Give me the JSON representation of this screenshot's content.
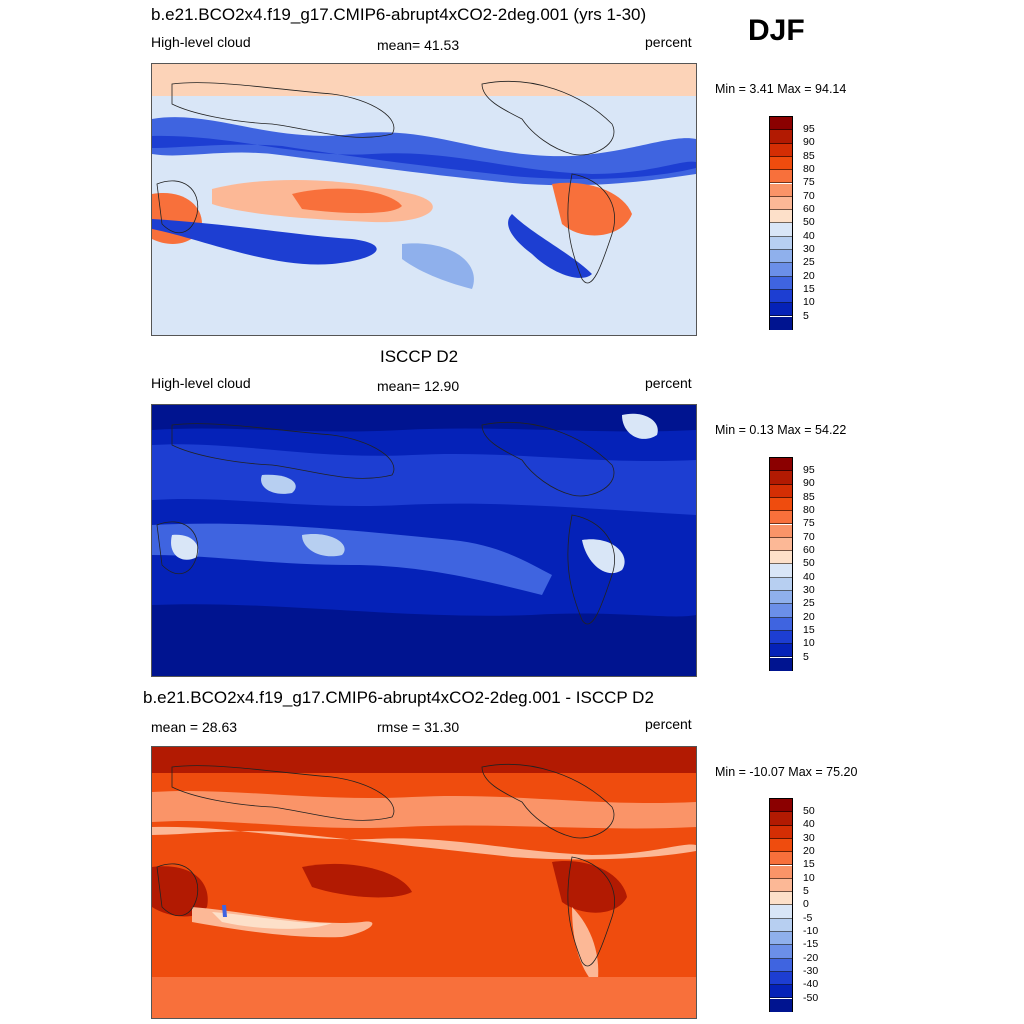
{
  "season": "DJF",
  "panels": [
    {
      "title": "b.e21.BCO2x4.f19_g17.CMIP6-abrupt4xCO2-2deg.001 (yrs 1-30)",
      "left_label": "High-level cloud",
      "center_label": "mean=  41.53",
      "right_label": "percent",
      "minmax": "Min =   3.41 Max =  94.14",
      "map_theme": "model-mid-range",
      "colorbar": {
        "ticks": [
          "95",
          "90",
          "85",
          "80",
          "75",
          "70",
          "60",
          "50",
          "40",
          "30",
          "25",
          "20",
          "15",
          "10",
          "5"
        ],
        "colors": [
          "#8b0000",
          "#b21a02",
          "#d42e04",
          "#ef4c0e",
          "#f8703b",
          "#fa9468",
          "#fcb896",
          "#fde0c9",
          "#d9e6f7",
          "#b7cff1",
          "#8fb0ec",
          "#6b8fe8",
          "#3f64e0",
          "#1d3ed2",
          "#0522b8",
          "#001490"
        ]
      }
    },
    {
      "title": "ISCCP D2",
      "left_label": "High-level cloud",
      "center_label": "mean=  12.90",
      "right_label": "percent",
      "minmax": "Min =   0.13 Max =  54.22",
      "map_theme": "observations-low-values",
      "colorbar": {
        "ticks": [
          "95",
          "90",
          "85",
          "80",
          "75",
          "70",
          "60",
          "50",
          "40",
          "30",
          "25",
          "20",
          "15",
          "10",
          "5"
        ],
        "colors": [
          "#8b0000",
          "#b21a02",
          "#d42e04",
          "#ef4c0e",
          "#f8703b",
          "#fa9468",
          "#fcb896",
          "#fde0c9",
          "#d9e6f7",
          "#b7cff1",
          "#8fb0ec",
          "#6b8fe8",
          "#3f64e0",
          "#1d3ed2",
          "#0522b8",
          "#001490"
        ]
      }
    },
    {
      "title": "b.e21.BCO2x4.f19_g17.CMIP6-abrupt4xCO2-2deg.001 - ISCCP D2",
      "left_label": "mean =  28.63",
      "center_label": "rmse =  31.30",
      "right_label": "percent",
      "minmax": "Min = -10.07 Max =  75.20",
      "map_theme": "difference-positive",
      "colorbar": {
        "ticks": [
          "50",
          "40",
          "30",
          "20",
          "15",
          "10",
          "5",
          "0",
          "-5",
          "-10",
          "-15",
          "-20",
          "-30",
          "-40",
          "-50"
        ],
        "colors": [
          "#8b0000",
          "#b21a02",
          "#d42e04",
          "#ef4c0e",
          "#f8703b",
          "#fa9468",
          "#fcb896",
          "#fde0c9",
          "#d9e6f7",
          "#b7cff1",
          "#8fb0ec",
          "#6b8fe8",
          "#3f64e0",
          "#1d3ed2",
          "#0522b8",
          "#001490"
        ]
      }
    }
  ]
}
